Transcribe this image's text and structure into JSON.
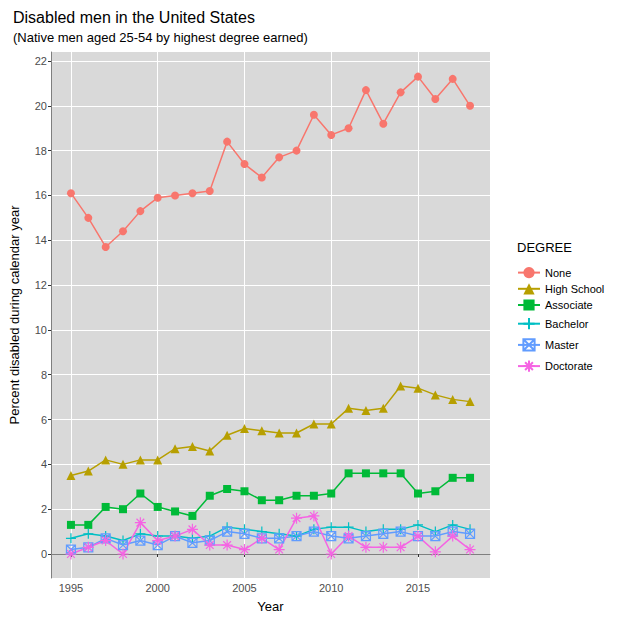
{
  "chart_data": {
    "type": "line",
    "title": "Disabled men in the United States",
    "subtitle": "(Native men aged 25-54 by highest degree earned)",
    "x_label": "Year",
    "y_label": "Percent disabled during calendar year",
    "legend_title": "DEGREE",
    "legend": "right",
    "grid": true,
    "x": [
      1995,
      1996,
      1997,
      1998,
      1999,
      2000,
      2001,
      2002,
      2003,
      2004,
      2005,
      2006,
      2007,
      2008,
      2009,
      2010,
      2011,
      2012,
      2013,
      2014,
      2015,
      2016,
      2017,
      2018
    ],
    "xlim": [
      1993.85,
      2019.15
    ],
    "xticks": [
      1995,
      2000,
      2005,
      2010,
      2015
    ],
    "ylim": [
      -1.07,
      22.4
    ],
    "yticks": [
      0,
      2,
      4,
      6,
      8,
      10,
      12,
      14,
      16,
      18,
      20,
      22
    ],
    "series": [
      {
        "name": "None",
        "color": "#F8766D",
        "marker": "circle",
        "values": [
          16.1,
          15.0,
          13.7,
          14.4,
          15.3,
          15.9,
          16.0,
          16.1,
          16.2,
          18.4,
          17.4,
          16.8,
          17.7,
          18.0,
          19.6,
          18.7,
          19.0,
          20.7,
          19.2,
          20.6,
          21.3,
          20.3,
          21.2,
          20.0
        ]
      },
      {
        "name": "High School",
        "color": "#B79F00",
        "marker": "triangle",
        "values": [
          3.5,
          3.7,
          4.2,
          4.0,
          4.2,
          4.2,
          4.7,
          4.8,
          4.6,
          5.3,
          5.6,
          5.5,
          5.4,
          5.4,
          5.8,
          5.8,
          6.5,
          6.4,
          6.5,
          7.5,
          7.4,
          7.1,
          6.9,
          6.8
        ]
      },
      {
        "name": "Associate",
        "color": "#00BA38",
        "marker": "square",
        "values": [
          1.3,
          1.3,
          2.1,
          2.0,
          2.7,
          2.1,
          1.9,
          1.7,
          2.6,
          2.9,
          2.8,
          2.4,
          2.4,
          2.6,
          2.6,
          2.7,
          3.6,
          3.6,
          3.6,
          3.6,
          2.7,
          2.8,
          3.4,
          3.4
        ]
      },
      {
        "name": "Bachelor",
        "color": "#00BFC4",
        "marker": "plus",
        "values": [
          0.7,
          0.9,
          0.8,
          0.6,
          0.9,
          0.8,
          0.8,
          0.7,
          0.8,
          1.2,
          1.1,
          1.0,
          0.9,
          0.8,
          1.1,
          1.2,
          1.2,
          1.0,
          1.1,
          1.1,
          1.3,
          1.0,
          1.3,
          1.1
        ]
      },
      {
        "name": "Master",
        "color": "#619CFF",
        "marker": "square-cross",
        "values": [
          0.2,
          0.3,
          0.7,
          0.4,
          0.6,
          0.4,
          0.8,
          0.5,
          0.6,
          1.0,
          0.9,
          0.7,
          0.7,
          0.8,
          1.0,
          0.8,
          0.7,
          0.8,
          0.9,
          1.0,
          0.8,
          0.8,
          1.0,
          0.9
        ]
      },
      {
        "name": "Doctorate",
        "color": "#F564E3",
        "marker": "asterisk",
        "values": [
          0.0,
          0.3,
          0.6,
          0.0,
          1.4,
          0.6,
          0.8,
          1.1,
          0.4,
          0.4,
          0.2,
          0.7,
          0.2,
          1.6,
          1.7,
          0.0,
          0.8,
          0.3,
          0.3,
          0.3,
          0.8,
          0.1,
          0.8,
          0.2
        ]
      }
    ]
  }
}
